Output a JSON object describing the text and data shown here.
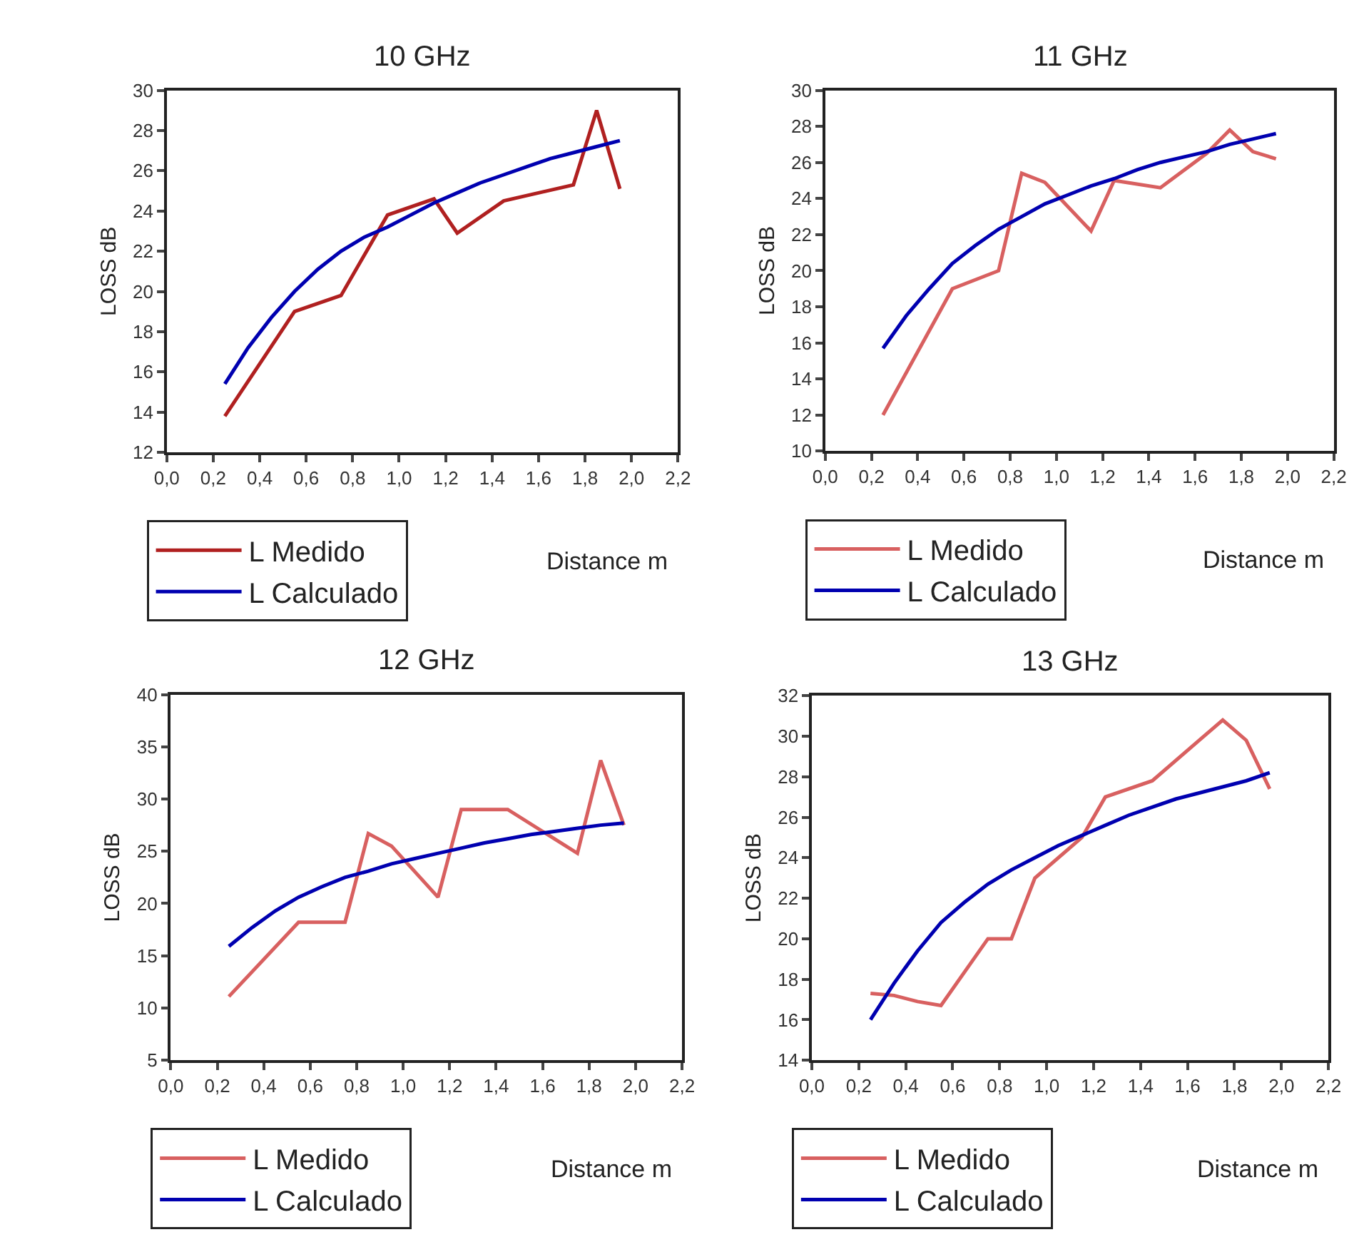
{
  "chart_data": [
    {
      "type": "line",
      "title": "10 GHz",
      "xlabel": "Distance m",
      "ylabel": "LOSS dB",
      "xlim": [
        0,
        2.2
      ],
      "ylim": [
        12,
        30
      ],
      "xticks": [
        {
          "value": 0,
          "label": "0,0"
        },
        {
          "value": 0.2,
          "label": "0,2"
        },
        {
          "value": 0.4,
          "label": "0,4"
        },
        {
          "value": 0.6,
          "label": "0,6"
        },
        {
          "value": 0.8,
          "label": "0,8"
        },
        {
          "value": 1.0,
          "label": "1,0"
        },
        {
          "value": 1.2,
          "label": "1,2"
        },
        {
          "value": 1.4,
          "label": "1,4"
        },
        {
          "value": 1.6,
          "label": "1,6"
        },
        {
          "value": 1.8,
          "label": "1,8"
        },
        {
          "value": 2.0,
          "label": "2,0"
        },
        {
          "value": 2.2,
          "label": "2,2"
        }
      ],
      "yticks": [
        12,
        14,
        16,
        18,
        20,
        22,
        24,
        26,
        28,
        30
      ],
      "legend": "bottom left",
      "marker": "none",
      "line_style": "solid",
      "series": [
        {
          "name": "L Medido",
          "color": "#b02020",
          "x": [
            0.25,
            0.55,
            0.75,
            0.95,
            1.15,
            1.25,
            1.45,
            1.75,
            1.85,
            1.95
          ],
          "values": [
            13.8,
            19.0,
            19.8,
            23.8,
            24.6,
            22.9,
            24.5,
            25.3,
            29.0,
            25.1
          ]
        },
        {
          "name": "L Calculado",
          "color": "#0000b0",
          "x": [
            0.25,
            0.35,
            0.45,
            0.55,
            0.65,
            0.75,
            0.85,
            0.95,
            1.05,
            1.15,
            1.25,
            1.35,
            1.45,
            1.55,
            1.65,
            1.75,
            1.85,
            1.95
          ],
          "values": [
            15.4,
            17.2,
            18.7,
            20.0,
            21.1,
            22.0,
            22.7,
            23.2,
            23.8,
            24.4,
            24.9,
            25.4,
            25.8,
            26.2,
            26.6,
            26.9,
            27.2,
            27.5
          ]
        }
      ]
    },
    {
      "type": "line",
      "title": "11 GHz",
      "xlabel": "Distance m",
      "ylabel": "LOSS dB",
      "xlim": [
        0,
        2.2
      ],
      "ylim": [
        10,
        30
      ],
      "xticks": [
        {
          "value": 0,
          "label": "0,0"
        },
        {
          "value": 0.2,
          "label": "0,2"
        },
        {
          "value": 0.4,
          "label": "0,4"
        },
        {
          "value": 0.6,
          "label": "0,6"
        },
        {
          "value": 0.8,
          "label": "0,8"
        },
        {
          "value": 1.0,
          "label": "1,0"
        },
        {
          "value": 1.2,
          "label": "1,2"
        },
        {
          "value": 1.4,
          "label": "1,4"
        },
        {
          "value": 1.6,
          "label": "1,6"
        },
        {
          "value": 1.8,
          "label": "1,8"
        },
        {
          "value": 2.0,
          "label": "2,0"
        },
        {
          "value": 2.2,
          "label": "2,2"
        }
      ],
      "yticks": [
        10,
        12,
        14,
        16,
        18,
        20,
        22,
        24,
        26,
        28,
        30
      ],
      "legend": "bottom left",
      "marker": "none",
      "line_style": "solid",
      "series": [
        {
          "name": "L Medido",
          "color": "#d86060",
          "x": [
            0.25,
            0.55,
            0.75,
            0.85,
            0.95,
            1.15,
            1.25,
            1.45,
            1.65,
            1.75,
            1.85,
            1.95
          ],
          "values": [
            12.0,
            19.0,
            20.0,
            25.4,
            24.9,
            22.2,
            25.0,
            24.6,
            26.5,
            27.8,
            26.6,
            26.2
          ]
        },
        {
          "name": "L Calculado",
          "color": "#0000b0",
          "x": [
            0.25,
            0.35,
            0.45,
            0.55,
            0.65,
            0.75,
            0.85,
            0.95,
            1.05,
            1.15,
            1.25,
            1.35,
            1.45,
            1.55,
            1.65,
            1.75,
            1.85,
            1.95
          ],
          "values": [
            15.7,
            17.5,
            19.0,
            20.4,
            21.4,
            22.3,
            23.0,
            23.7,
            24.2,
            24.7,
            25.1,
            25.6,
            26.0,
            26.3,
            26.6,
            27.0,
            27.3,
            27.6
          ]
        }
      ]
    },
    {
      "type": "line",
      "title": "12 GHz",
      "xlabel": "Distance m",
      "ylabel": "LOSS dB",
      "xlim": [
        0,
        2.2
      ],
      "ylim": [
        5,
        40
      ],
      "xticks": [
        {
          "value": 0,
          "label": "0,0"
        },
        {
          "value": 0.2,
          "label": "0,2"
        },
        {
          "value": 0.4,
          "label": "0,4"
        },
        {
          "value": 0.6,
          "label": "0,6"
        },
        {
          "value": 0.8,
          "label": "0,8"
        },
        {
          "value": 1.0,
          "label": "1,0"
        },
        {
          "value": 1.2,
          "label": "1,2"
        },
        {
          "value": 1.4,
          "label": "1,4"
        },
        {
          "value": 1.6,
          "label": "1,6"
        },
        {
          "value": 1.8,
          "label": "1,8"
        },
        {
          "value": 2.0,
          "label": "2,0"
        },
        {
          "value": 2.2,
          "label": "2,2"
        }
      ],
      "yticks": [
        5,
        10,
        15,
        20,
        25,
        30,
        35,
        40
      ],
      "legend": "bottom left",
      "marker": "none",
      "line_style": "solid",
      "series": [
        {
          "name": "L Medido",
          "color": "#d86060",
          "x": [
            0.25,
            0.55,
            0.75,
            0.85,
            0.95,
            1.15,
            1.25,
            1.45,
            1.75,
            1.85,
            1.95
          ],
          "values": [
            11.1,
            18.2,
            18.2,
            26.7,
            25.5,
            20.6,
            29.0,
            29.0,
            24.8,
            33.7,
            27.5
          ]
        },
        {
          "name": "L Calculado",
          "color": "#0000b0",
          "x": [
            0.25,
            0.35,
            0.45,
            0.55,
            0.65,
            0.75,
            0.85,
            0.95,
            1.05,
            1.15,
            1.25,
            1.35,
            1.45,
            1.55,
            1.65,
            1.75,
            1.85,
            1.95
          ],
          "values": [
            15.9,
            17.7,
            19.3,
            20.6,
            21.6,
            22.5,
            23.1,
            23.8,
            24.3,
            24.8,
            25.3,
            25.8,
            26.2,
            26.6,
            26.9,
            27.2,
            27.5,
            27.7
          ]
        }
      ]
    },
    {
      "type": "line",
      "title": "13 GHz",
      "xlabel": "Distance m",
      "ylabel": "LOSS dB",
      "xlim": [
        0,
        2.2
      ],
      "ylim": [
        14,
        32
      ],
      "xticks": [
        {
          "value": 0,
          "label": "0,0"
        },
        {
          "value": 0.2,
          "label": "0,2"
        },
        {
          "value": 0.4,
          "label": "0,4"
        },
        {
          "value": 0.6,
          "label": "0,6"
        },
        {
          "value": 0.8,
          "label": "0,8"
        },
        {
          "value": 1.0,
          "label": "1,0"
        },
        {
          "value": 1.2,
          "label": "1,2"
        },
        {
          "value": 1.4,
          "label": "1,4"
        },
        {
          "value": 1.6,
          "label": "1,6"
        },
        {
          "value": 1.8,
          "label": "1,8"
        },
        {
          "value": 2.0,
          "label": "2,0"
        },
        {
          "value": 2.2,
          "label": "2,2"
        }
      ],
      "yticks": [
        14,
        16,
        18,
        20,
        22,
        24,
        26,
        28,
        30,
        32
      ],
      "legend": "bottom left",
      "marker": "none",
      "line_style": "solid",
      "series": [
        {
          "name": "L Medido",
          "color": "#d86060",
          "x": [
            0.25,
            0.35,
            0.45,
            0.55,
            0.75,
            0.85,
            0.95,
            1.15,
            1.25,
            1.45,
            1.65,
            1.75,
            1.85,
            1.95
          ],
          "values": [
            17.3,
            17.2,
            16.9,
            16.7,
            20.0,
            20.0,
            23.0,
            25.0,
            27.0,
            27.8,
            29.8,
            30.8,
            29.8,
            27.4
          ]
        },
        {
          "name": "L Calculado",
          "color": "#0000b0",
          "x": [
            0.25,
            0.35,
            0.45,
            0.55,
            0.65,
            0.75,
            0.85,
            0.95,
            1.05,
            1.15,
            1.25,
            1.35,
            1.45,
            1.55,
            1.65,
            1.75,
            1.85,
            1.95
          ],
          "values": [
            16.0,
            17.8,
            19.4,
            20.8,
            21.8,
            22.7,
            23.4,
            24.0,
            24.6,
            25.1,
            25.6,
            26.1,
            26.5,
            26.9,
            27.2,
            27.5,
            27.8,
            28.2
          ]
        }
      ]
    }
  ]
}
